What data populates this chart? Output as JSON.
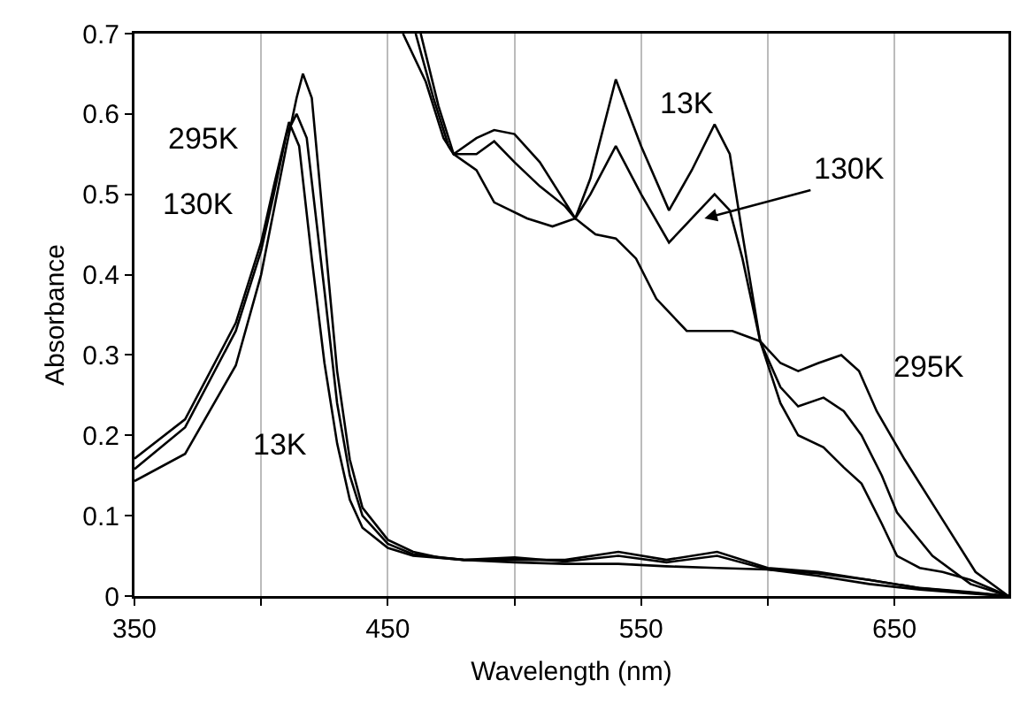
{
  "chart_data": {
    "type": "line",
    "xlabel": "Wavelength (nm)",
    "ylabel": "Absorbance",
    "xlim": [
      350,
      695
    ],
    "ylim": [
      0,
      0.7
    ],
    "xticks": [
      350,
      {
        "value": 400,
        "label": null
      },
      450,
      {
        "value": 500,
        "label": null
      },
      550,
      {
        "value": 600,
        "label": null
      },
      650
    ],
    "yticks": [
      0,
      0.1,
      0.2,
      0.3,
      0.4,
      0.5,
      0.6,
      0.7
    ],
    "grid": "x",
    "marker": "none",
    "line_style": "solid",
    "series": [
      {
        "color": "#000000",
        "x": [
          350,
          370,
          390,
          400,
          405,
          410,
          414,
          416.5,
          420,
          425,
          430,
          435,
          440,
          450,
          460,
          470,
          480,
          500,
          520,
          541,
          560,
          580,
          600,
          620,
          640,
          660,
          680,
          695
        ],
        "values": [
          0.143,
          0.177,
          0.287,
          0.4,
          0.48,
          0.56,
          0.62,
          0.65,
          0.62,
          0.45,
          0.28,
          0.17,
          0.11,
          0.07,
          0.055,
          0.048,
          0.045,
          0.045,
          0.045,
          0.055,
          0.045,
          0.055,
          0.035,
          0.03,
          0.02,
          0.01,
          0.005,
          0
        ]
      },
      {
        "color": "#000000",
        "x": [
          350,
          370,
          390,
          400,
          405,
          410,
          414,
          418,
          425,
          430,
          435,
          440,
          450,
          460,
          480,
          500,
          520,
          541,
          560,
          580,
          600,
          620,
          640,
          660,
          680,
          695
        ],
        "values": [
          0.158,
          0.21,
          0.33,
          0.43,
          0.5,
          0.575,
          0.6,
          0.57,
          0.38,
          0.24,
          0.15,
          0.1,
          0.065,
          0.052,
          0.045,
          0.048,
          0.043,
          0.05,
          0.042,
          0.05,
          0.033,
          0.028,
          0.02,
          0.01,
          0.004,
          0
        ]
      },
      {
        "color": "#000000",
        "x": [
          350,
          370,
          390,
          400,
          405,
          411,
          415,
          420,
          425,
          430,
          435,
          440,
          450,
          460,
          480,
          500,
          520,
          541,
          560,
          580,
          600,
          620,
          640,
          660,
          680,
          695
        ],
        "values": [
          0.171,
          0.22,
          0.34,
          0.44,
          0.51,
          0.59,
          0.56,
          0.42,
          0.29,
          0.19,
          0.12,
          0.085,
          0.06,
          0.05,
          0.045,
          0.042,
          0.04,
          0.04,
          0.037,
          0.035,
          0.033,
          0.025,
          0.015,
          0.008,
          0.003,
          0
        ]
      },
      {
        "color": "#000000",
        "x": [
          456,
          465,
          472,
          476,
          485,
          492,
          505,
          515,
          524,
          530,
          540,
          550,
          561,
          570,
          579,
          585,
          590,
          597,
          605,
          612,
          622,
          630,
          637,
          645,
          651,
          660,
          669,
          680,
          695
        ],
        "values": [
          0.7,
          0.64,
          0.57,
          0.55,
          0.53,
          0.49,
          0.47,
          0.46,
          0.47,
          0.52,
          0.643,
          0.56,
          0.48,
          0.53,
          0.587,
          0.55,
          0.45,
          0.317,
          0.24,
          0.2,
          0.185,
          0.16,
          0.14,
          0.09,
          0.05,
          0.035,
          0.03,
          0.02,
          0
        ]
      },
      {
        "color": "#000000",
        "x": [
          461,
          468,
          474,
          476,
          485,
          492,
          500,
          510,
          520,
          524,
          530,
          540,
          550,
          561,
          570,
          579,
          585,
          590,
          597,
          605,
          612,
          622,
          630,
          637,
          645,
          651,
          665,
          680,
          695
        ],
        "values": [
          0.7,
          0.62,
          0.56,
          0.55,
          0.55,
          0.566,
          0.54,
          0.51,
          0.485,
          0.47,
          0.5,
          0.56,
          0.5,
          0.44,
          0.47,
          0.5,
          0.48,
          0.42,
          0.317,
          0.26,
          0.236,
          0.247,
          0.23,
          0.2,
          0.15,
          0.104,
          0.05,
          0.015,
          0
        ]
      },
      {
        "color": "#000000",
        "x": [
          463,
          470,
          476,
          485,
          492,
          500,
          510,
          524,
          532,
          540,
          548,
          556,
          568,
          586,
          597,
          605,
          612,
          620,
          629,
          636,
          643,
          654,
          668,
          682,
          695
        ],
        "values": [
          0.7,
          0.61,
          0.55,
          0.57,
          0.58,
          0.575,
          0.54,
          0.47,
          0.45,
          0.445,
          0.42,
          0.37,
          0.33,
          0.33,
          0.317,
          0.29,
          0.28,
          0.29,
          0.3,
          0.28,
          0.23,
          0.17,
          0.1,
          0.03,
          0
        ]
      }
    ],
    "annotations": [
      "295K",
      "130K",
      "13K",
      "13K",
      {
        "text": "130K",
        "x": 575,
        "y": 0.47
      },
      "295K"
    ]
  }
}
